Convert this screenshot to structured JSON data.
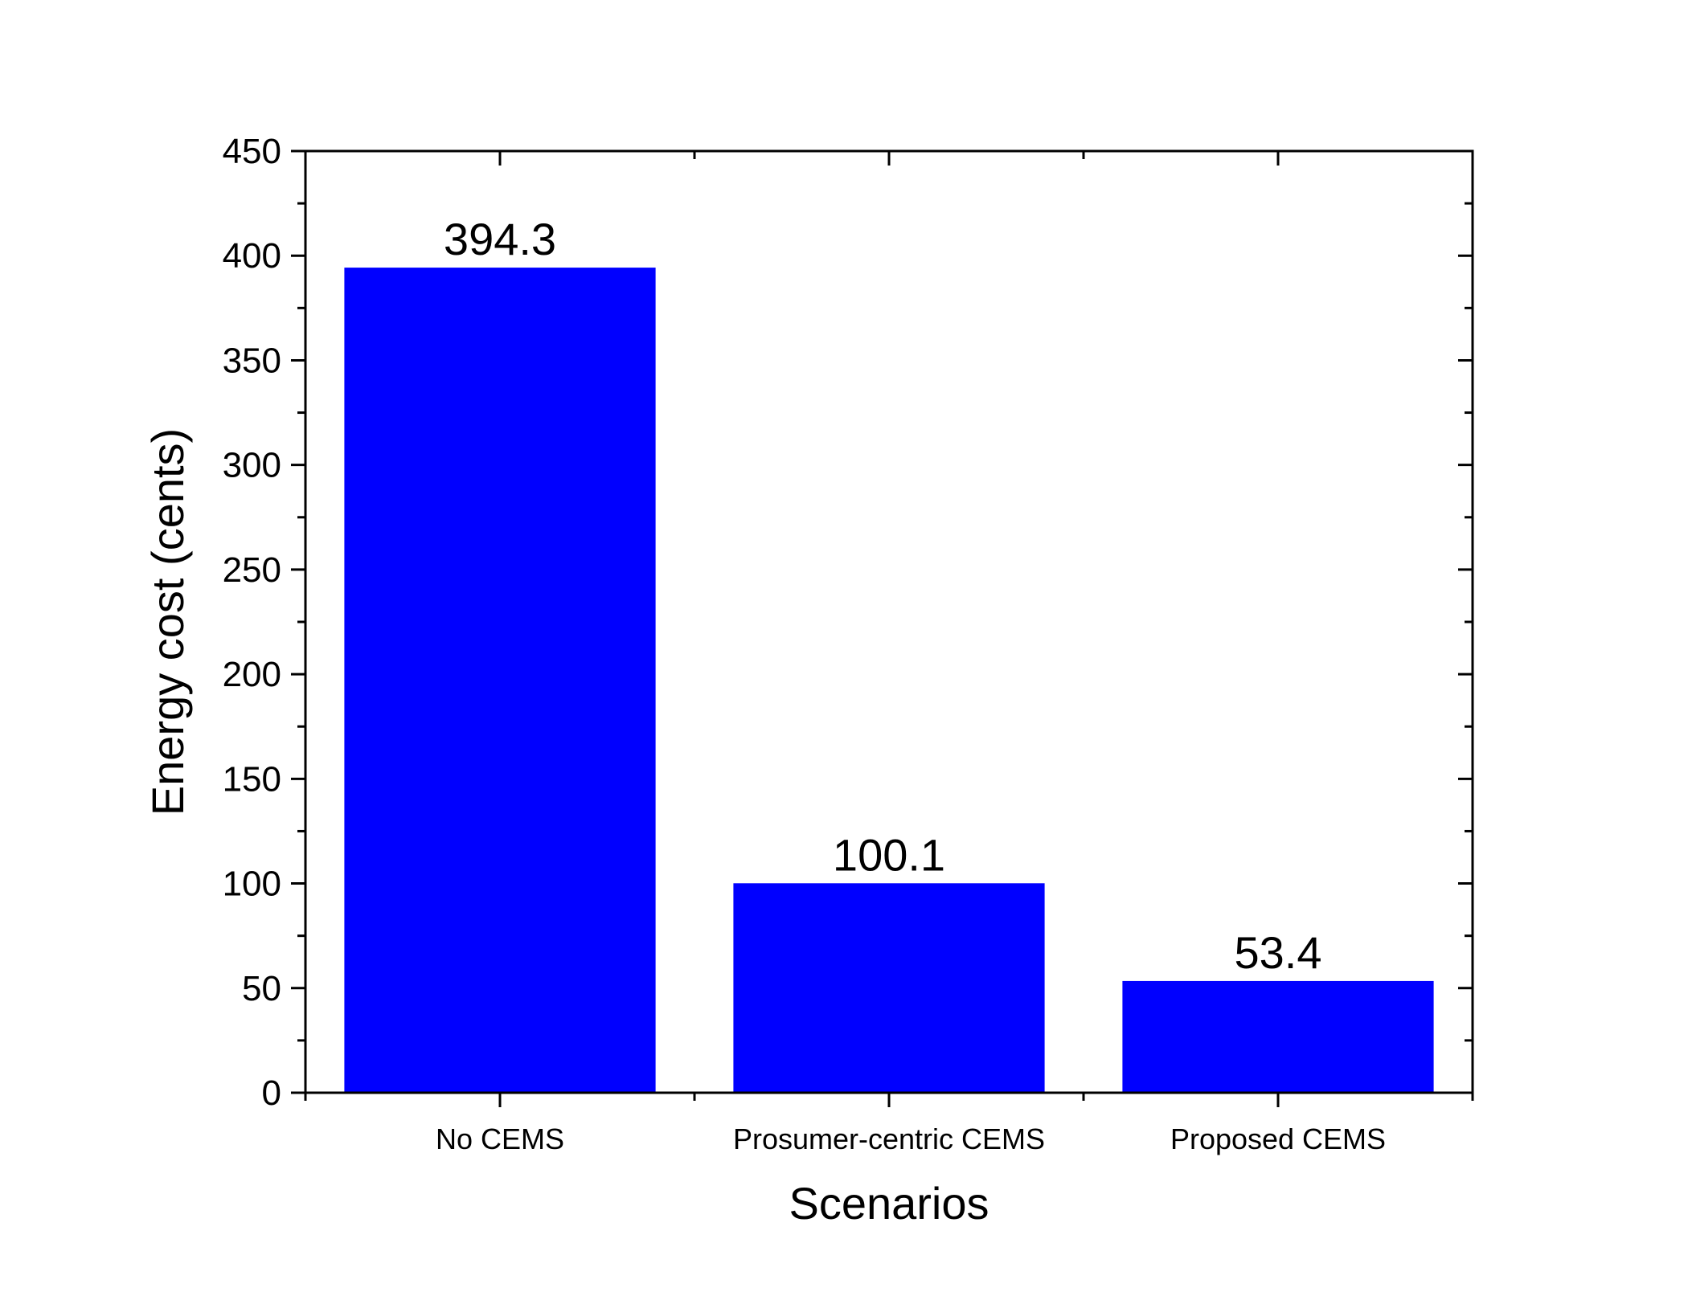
{
  "chart_data": {
    "type": "bar",
    "categories": [
      "No CEMS",
      "Prosumer-centric CEMS",
      "Proposed CEMS"
    ],
    "values": [
      394.3,
      100.1,
      53.4
    ],
    "data_labels": [
      "394.3",
      "100.1",
      "53.4"
    ],
    "title": "",
    "xlabel": "Scenarios",
    "ylabel": "Energy cost (cents)",
    "ylim": [
      0,
      450
    ],
    "yticks": [
      0,
      50,
      100,
      150,
      200,
      250,
      300,
      350,
      400,
      450
    ],
    "ytick_labels": [
      "0",
      "50",
      "100",
      "150",
      "200",
      "250",
      "300",
      "350",
      "400",
      "450"
    ],
    "bar_color": "#0000FF",
    "grid": false,
    "legend": false
  }
}
